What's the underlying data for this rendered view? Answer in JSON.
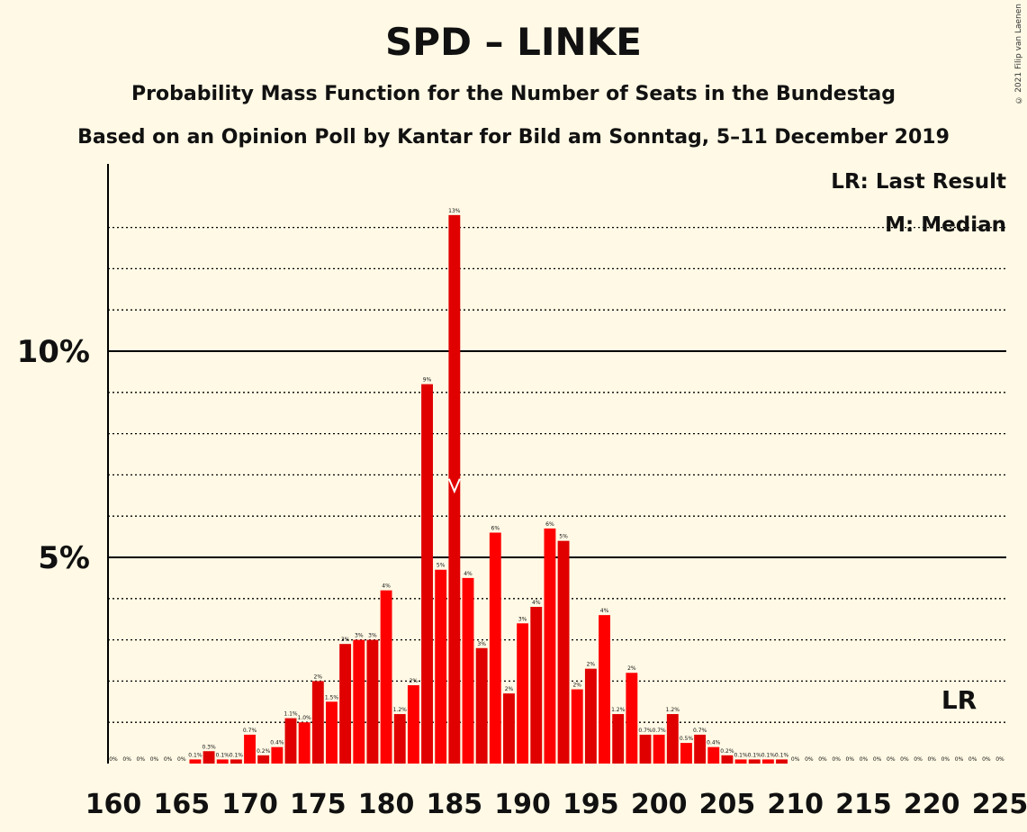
{
  "title": "SPD – LINKE",
  "subtitle1": "Probability Mass Function for the Number of Seats in the Bundestag",
  "subtitle2": "Based on an Opinion Poll by Kantar for Bild am Sonntag, 5–11 December 2019",
  "copyright": "© 2021 Filip van Laenen",
  "legend": {
    "lr": "LR: Last Result",
    "m": "M: Median"
  },
  "colors": {
    "bar_dark": "#E00000",
    "bar_light": "#FF0000",
    "background": "#FFF9E5"
  },
  "chart_data": {
    "type": "bar",
    "x_ticks": [
      160,
      165,
      170,
      175,
      180,
      185,
      190,
      195,
      200,
      205,
      210,
      215,
      220,
      225
    ],
    "y_tick_labels": [
      {
        "value": 5,
        "label": "5%"
      },
      {
        "value": 10,
        "label": "10%"
      }
    ],
    "ylim": [
      0,
      14.5
    ],
    "xlim": [
      160,
      225
    ],
    "median_seat": 185,
    "last_result_seat": 222,
    "last_result_label": "LR",
    "median_marker": "M",
    "grid": "dotted every 1%, solid at 5% and 10%",
    "seats": [
      160,
      161,
      162,
      163,
      164,
      165,
      166,
      167,
      168,
      169,
      170,
      171,
      172,
      173,
      174,
      175,
      176,
      177,
      178,
      179,
      180,
      181,
      182,
      183,
      184,
      185,
      186,
      187,
      188,
      189,
      190,
      191,
      192,
      193,
      194,
      195,
      196,
      197,
      198,
      199,
      200,
      201,
      202,
      203,
      204,
      205,
      206,
      207,
      208,
      209,
      210,
      211,
      212,
      213,
      214,
      215,
      216,
      217,
      218,
      219,
      220,
      221,
      222,
      223,
      224,
      225
    ],
    "values": [
      0,
      0,
      0,
      0,
      0,
      0,
      0.1,
      0.3,
      0.1,
      0.1,
      0.7,
      0.2,
      0.4,
      1.1,
      1.0,
      2.0,
      1.5,
      2.9,
      3.0,
      3.0,
      4.2,
      1.2,
      1.9,
      9.2,
      4.7,
      13.3,
      4.5,
      2.8,
      5.6,
      1.7,
      3.4,
      3.8,
      5.7,
      5.4,
      1.8,
      2.3,
      3.6,
      1.2,
      2.2,
      0.7,
      0.7,
      1.2,
      0.5,
      0.7,
      0.4,
      0.2,
      0.1,
      0.1,
      0.1,
      0.1,
      0,
      0,
      0,
      0,
      0,
      0,
      0,
      0,
      0,
      0,
      0,
      0,
      0,
      0,
      0,
      0
    ],
    "labels": [
      "0%",
      "0%",
      "0%",
      "0%",
      "0%",
      "0%",
      "0.1%",
      "0.3%",
      "0.1%",
      "0.1%",
      "0.7%",
      "0.2%",
      "0.4%",
      "1.1%",
      "1.0%",
      "2%",
      "1.5%",
      "3%",
      "3%",
      "3%",
      "4%",
      "1.2%",
      "2%",
      "9%",
      "5%",
      "13%",
      "4%",
      "3%",
      "6%",
      "2%",
      "3%",
      "4%",
      "6%",
      "5%",
      "2%",
      "2%",
      "4%",
      "1.2%",
      "2%",
      "0.7%",
      "0.7%",
      "1.2%",
      "0.5%",
      "0.7%",
      "0.4%",
      "0.2%",
      "0.1%",
      "0.1%",
      "0.1%",
      "0.1%",
      "0%",
      "0%",
      "0%",
      "0%",
      "0%",
      "0%",
      "0%",
      "0%",
      "0%",
      "0%",
      "0%",
      "0%",
      "0%",
      "0%",
      "0%",
      "0%"
    ]
  }
}
